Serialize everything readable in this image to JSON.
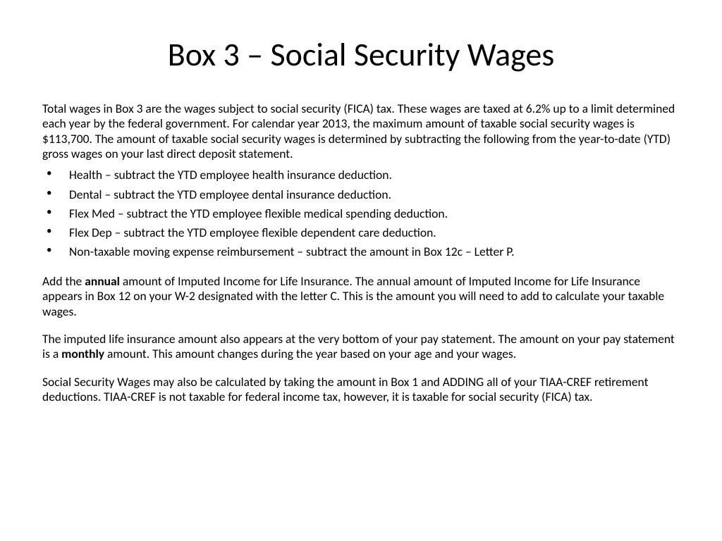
{
  "title": "Box 3 – Social Security Wages",
  "intro": "Total wages in Box 3 are the wages subject to social security (FICA) tax.  These wages are taxed at 6.2% up to a limit determined each year by the federal government.  For calendar year 2013, the maximum amount of taxable social security wages is $113,700.  The amount of taxable social security wages is determined by subtracting the following from the year-to-date (YTD) gross wages on your last direct deposit statement.",
  "bullets": [
    "Health – subtract the YTD employee health insurance deduction.",
    "Dental – subtract the YTD employee dental insurance deduction.",
    "Flex Med – subtract the YTD employee flexible medical spending deduction.",
    "Flex Dep – subtract the YTD employee flexible dependent care deduction.",
    "Non-taxable moving expense reimbursement – subtract the amount in Box 12c – Letter P."
  ],
  "para1_pre": "Add the ",
  "para1_bold": "annual",
  "para1_post": " amount of Imputed Income for Life Insurance. The annual amount of Imputed Income for Life Insurance appears in Box 12 on your W-2 designated with the letter C.  This is the amount you will need to add to calculate your taxable wages.",
  "para2_pre": "The imputed life insurance amount also appears at the very bottom of your pay statement.  The amount on your pay statement is a ",
  "para2_bold": "monthly",
  "para2_post": " amount.  This amount changes during the year based on your age and your wages.",
  "para3": "Social Security Wages may also be calculated by taking the amount in Box 1 and ADDING all of your TIAA-CREF retirement deductions.  TIAA-CREF is not taxable for federal income tax, however, it is taxable for social security (FICA) tax."
}
